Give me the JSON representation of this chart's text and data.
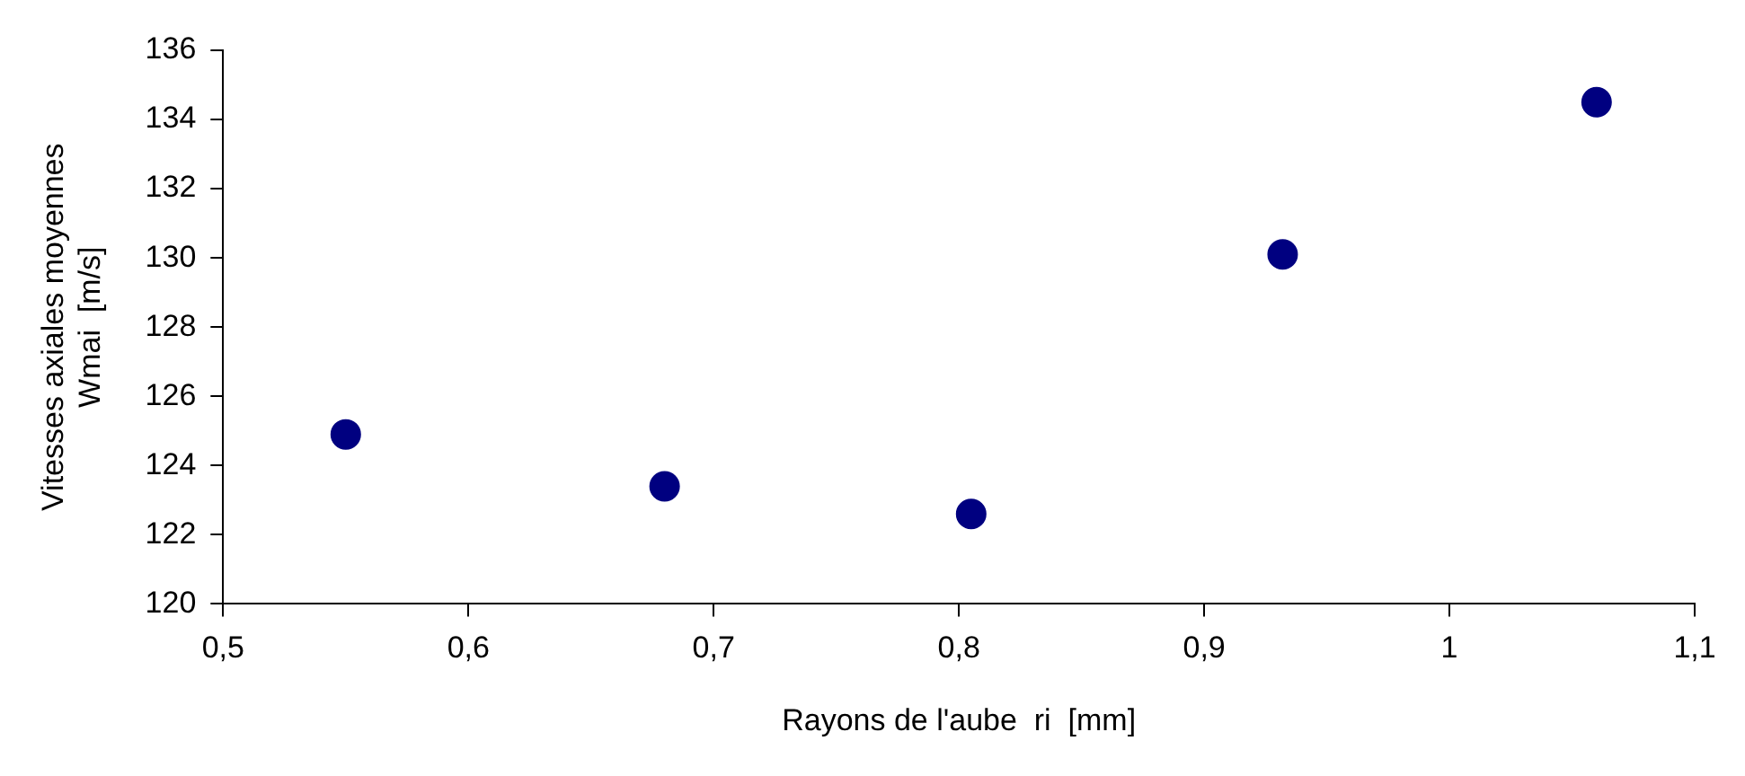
{
  "chart_data": {
    "type": "scatter",
    "xlabel": "Rayons de l'aube  ri  [mm]",
    "ylabel": "Vitesses axiales moyennes\nWmai  [m/s]",
    "x": [
      0.55,
      0.68,
      0.805,
      0.932,
      1.06
    ],
    "series": [
      {
        "color": "#000080",
        "values": [
          124.9,
          123.4,
          122.6,
          130.1,
          134.5
        ]
      }
    ],
    "xlim": [
      0.5,
      1.1
    ],
    "xticks": [
      {
        "value": 0.5,
        "label": "0,5"
      },
      {
        "value": 0.6,
        "label": "0,6"
      },
      {
        "value": 0.7,
        "label": "0,7"
      },
      {
        "value": 0.8,
        "label": "0,8"
      },
      {
        "value": 0.9,
        "label": "0,9"
      },
      {
        "value": 1,
        "label": "1"
      },
      {
        "value": 1.1,
        "label": "1,1"
      }
    ],
    "ylim": [
      120,
      136
    ],
    "yticks": [
      120,
      122,
      124,
      126,
      128,
      130,
      132,
      134,
      136
    ],
    "grid": false,
    "legend": false,
    "marker": "circle"
  }
}
